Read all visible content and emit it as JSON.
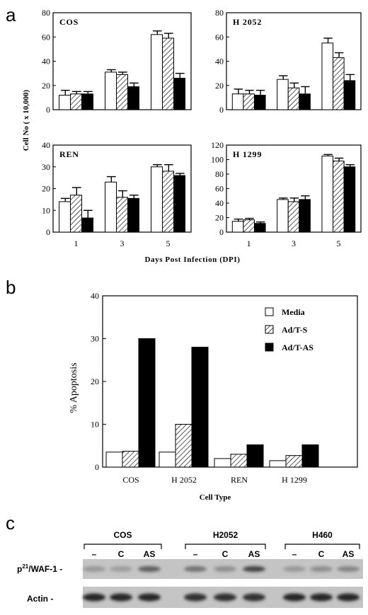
{
  "panel_labels": [
    "a",
    "b",
    "c"
  ],
  "chart_data": [
    {
      "type": "bar",
      "panel": "a",
      "title": "COS",
      "categories": [
        "1",
        "3",
        "5"
      ],
      "series": [
        {
          "values": [
            12,
            31,
            62
          ],
          "errors": [
            4,
            2,
            3
          ]
        },
        {
          "values": [
            13,
            29,
            59
          ],
          "errors": [
            2,
            2,
            4
          ]
        },
        {
          "values": [
            13,
            19,
            26
          ],
          "errors": [
            2,
            3,
            4
          ]
        }
      ],
      "ylim": [
        0,
        80
      ],
      "yticks": [
        0,
        20,
        40,
        60,
        80
      ]
    },
    {
      "type": "bar",
      "panel": "a",
      "title": "H 2052",
      "categories": [
        "1",
        "3",
        "5"
      ],
      "series": [
        {
          "values": [
            13,
            25,
            55
          ],
          "errors": [
            4,
            3,
            4
          ]
        },
        {
          "values": [
            13,
            18,
            43
          ],
          "errors": [
            3,
            4,
            4
          ]
        },
        {
          "values": [
            12,
            13,
            24
          ],
          "errors": [
            4,
            6,
            5
          ]
        }
      ],
      "ylim": [
        0,
        80
      ],
      "yticks": [
        0,
        20,
        40,
        60,
        80
      ]
    },
    {
      "type": "bar",
      "panel": "a",
      "title": "REN",
      "categories": [
        "1",
        "3",
        "5"
      ],
      "series": [
        {
          "values": [
            14,
            23,
            30
          ],
          "errors": [
            1.5,
            2.5,
            1
          ]
        },
        {
          "values": [
            17,
            16,
            28
          ],
          "errors": [
            3.5,
            3,
            3
          ]
        },
        {
          "values": [
            6.5,
            15.5,
            26
          ],
          "errors": [
            3.5,
            1.5,
            1
          ]
        }
      ],
      "ylim": [
        0,
        40
      ],
      "yticks": [
        0,
        10,
        20,
        30,
        40
      ]
    },
    {
      "type": "bar",
      "panel": "a",
      "title": "H 1299",
      "categories": [
        "1",
        "3",
        "5"
      ],
      "series": [
        {
          "values": [
            15,
            45,
            105
          ],
          "errors": [
            3,
            2,
            2
          ]
        },
        {
          "values": [
            17,
            42,
            98
          ],
          "errors": [
            2,
            5,
            4
          ]
        },
        {
          "values": [
            12,
            45,
            90
          ],
          "errors": [
            2,
            5,
            3
          ]
        }
      ],
      "ylim": [
        0,
        120
      ],
      "yticks": [
        0,
        20,
        40,
        60,
        80,
        100,
        120
      ]
    },
    {
      "type": "bar",
      "panel": "b",
      "categories": [
        "COS",
        "H 2052",
        "REN",
        "H 1299"
      ],
      "series": [
        {
          "name": "Media",
          "values": [
            3.5,
            3.5,
            2,
            1.5
          ]
        },
        {
          "name": "Ad/T-S",
          "values": [
            3.7,
            10,
            3,
            2.7
          ]
        },
        {
          "name": "Ad/T-AS",
          "values": [
            30,
            28,
            5.2,
            5.2
          ]
        }
      ],
      "xlabel": "Cell Type",
      "ylabel": "% Apoptosis",
      "ylim": [
        0,
        40
      ],
      "yticks": [
        0,
        10,
        20,
        30,
        40
      ],
      "legend": "top-right"
    }
  ],
  "panel_a": {
    "ylabel": "Cell No ( x 10,000)",
    "xlabel": "Days Post Infection (DPI)"
  },
  "blot": {
    "groups": [
      "COS",
      "H2052",
      "H460"
    ],
    "lanes": [
      "–",
      "C",
      "AS",
      "–",
      "C",
      "AS",
      "–",
      "C",
      "AS"
    ],
    "rows": [
      {
        "prefix": "p",
        "sup": "21",
        "suffix": "/WAF-1 -"
      },
      {
        "prefix": "Actin -",
        "sup": "",
        "suffix": ""
      }
    ],
    "band_intensity": {
      "p21": [
        0.25,
        0.22,
        0.55,
        0.45,
        0.3,
        0.7,
        0.25,
        0.3,
        0.35
      ],
      "actin": [
        0.85,
        0.85,
        0.85,
        0.8,
        0.8,
        0.8,
        0.85,
        0.85,
        0.85
      ]
    }
  }
}
